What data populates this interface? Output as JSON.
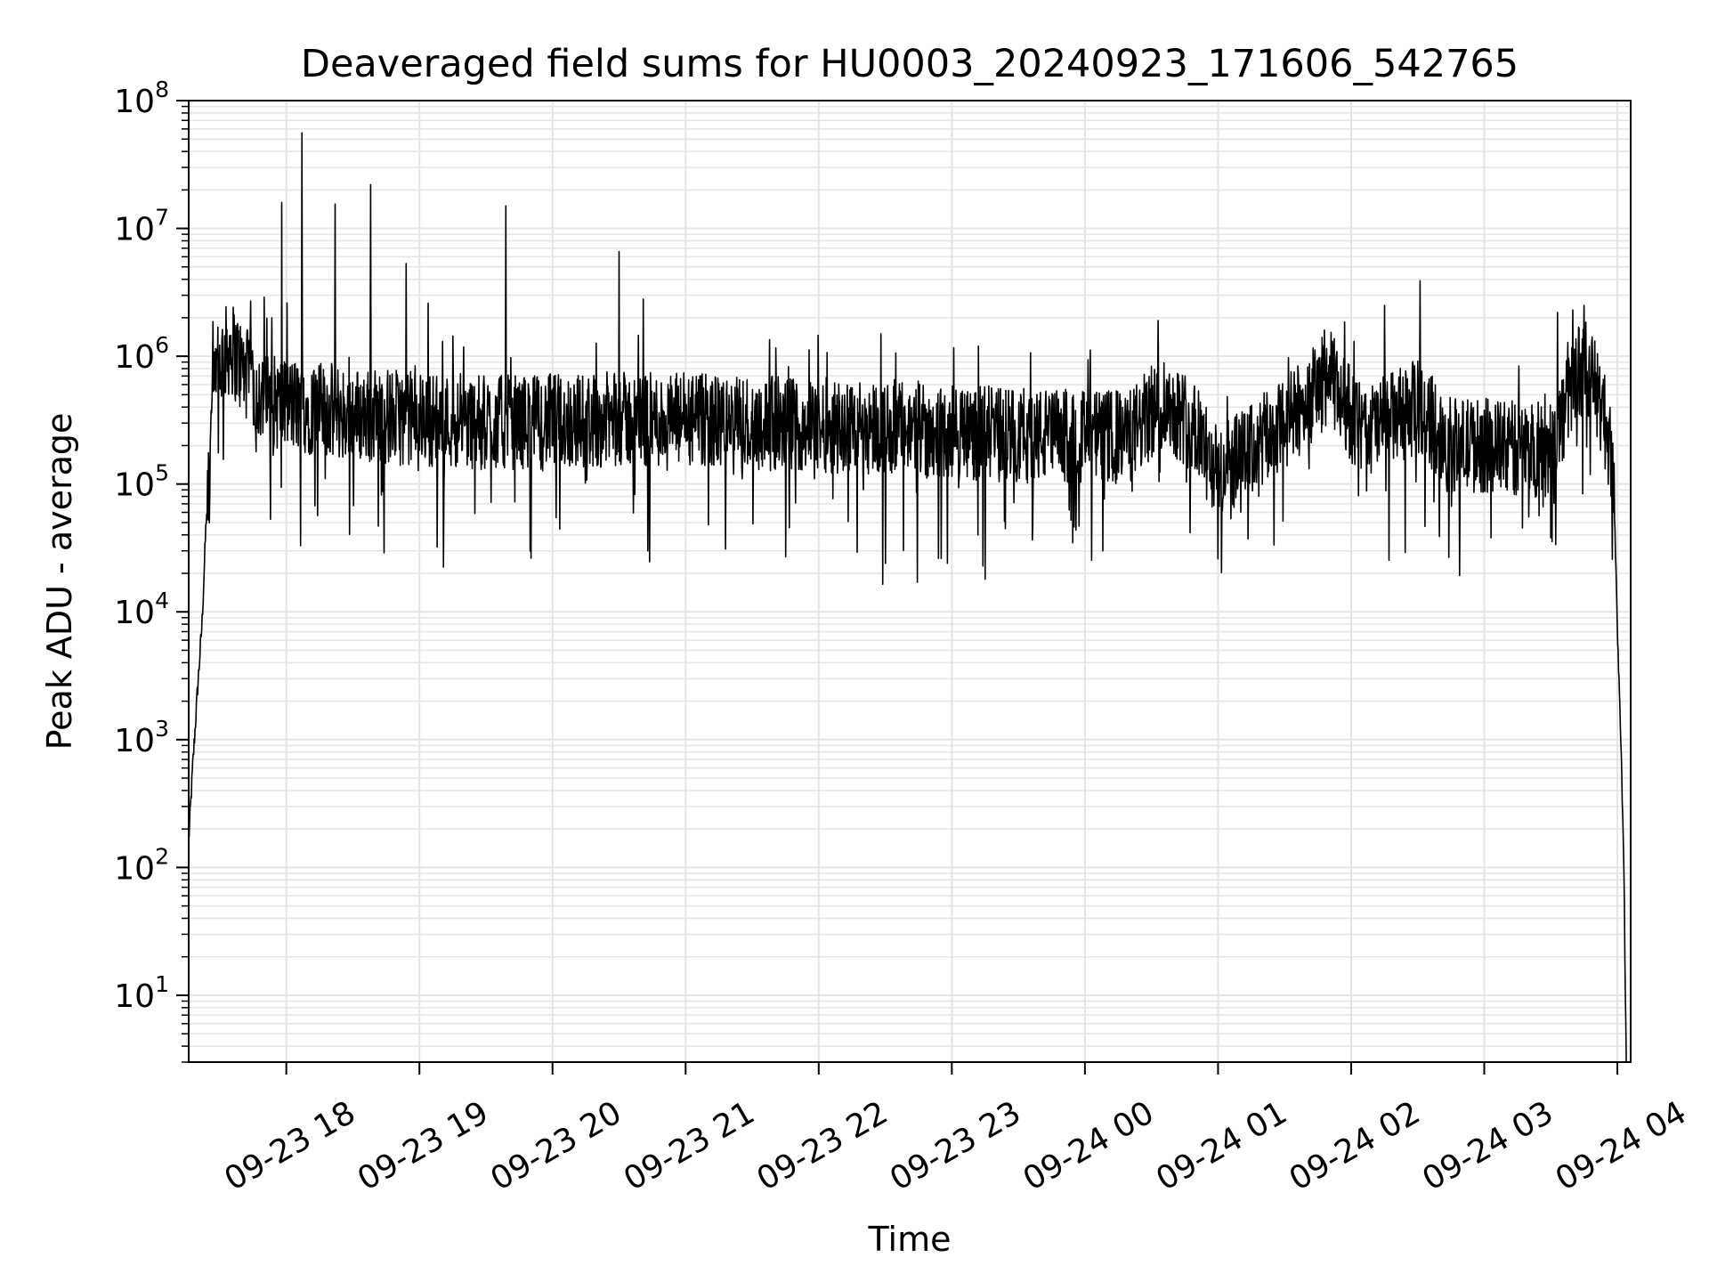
{
  "chart_data": {
    "type": "line",
    "title": "Deaveraged field sums for HU0003_20240923_171606_542765",
    "xlabel": "Time",
    "ylabel": "Peak ADU - average",
    "yscale": "log",
    "ylim": [
      3,
      100000000
    ],
    "xlim": [
      "2024-09-23 17:16",
      "2024-09-24 04:06"
    ],
    "grid": {
      "major": true,
      "minor_y": true
    },
    "line_color": "#000000",
    "grid_color": "#e5e5e5",
    "x_ticks": [
      {
        "t": "2024-09-23 18:00",
        "label": "09-23 18"
      },
      {
        "t": "2024-09-23 19:00",
        "label": "09-23 19"
      },
      {
        "t": "2024-09-23 20:00",
        "label": "09-23 20"
      },
      {
        "t": "2024-09-23 21:00",
        "label": "09-23 21"
      },
      {
        "t": "2024-09-23 22:00",
        "label": "09-23 22"
      },
      {
        "t": "2024-09-23 23:00",
        "label": "09-23 23"
      },
      {
        "t": "2024-09-24 00:00",
        "label": "09-24 00"
      },
      {
        "t": "2024-09-24 01:00",
        "label": "09-24 01"
      },
      {
        "t": "2024-09-24 02:00",
        "label": "09-24 02"
      },
      {
        "t": "2024-09-24 03:00",
        "label": "09-24 03"
      },
      {
        "t": "2024-09-24 04:00",
        "label": "09-24 04"
      }
    ],
    "y_ticks": [
      {
        "value": 10,
        "base": "10",
        "exp": "1"
      },
      {
        "value": 100,
        "base": "10",
        "exp": "2"
      },
      {
        "value": 1000,
        "base": "10",
        "exp": "3"
      },
      {
        "value": 10000,
        "base": "10",
        "exp": "4"
      },
      {
        "value": 100000,
        "base": "10",
        "exp": "5"
      },
      {
        "value": 1000000,
        "base": "10",
        "exp": "6"
      },
      {
        "value": 10000000,
        "base": "10",
        "exp": "7"
      },
      {
        "value": 100000000,
        "base": "10",
        "exp": "8"
      }
    ],
    "envelope": [
      [
        "2024-09-23 17:16",
        160
      ],
      [
        "2024-09-23 17:18",
        700
      ],
      [
        "2024-09-23 17:20",
        2500
      ],
      [
        "2024-09-23 17:22",
        8000
      ],
      [
        "2024-09-23 17:24",
        60000
      ],
      [
        "2024-09-23 17:26",
        300000
      ],
      [
        "2024-09-23 17:30",
        900000
      ],
      [
        "2024-09-23 17:35",
        1200000
      ],
      [
        "2024-09-23 17:40",
        800000
      ],
      [
        "2024-09-23 17:50",
        450000
      ],
      [
        "2024-09-23 18:30",
        350000
      ],
      [
        "2024-09-23 19:30",
        300000
      ],
      [
        "2024-09-23 20:30",
        320000
      ],
      [
        "2024-09-23 21:30",
        300000
      ],
      [
        "2024-09-23 22:30",
        280000
      ],
      [
        "2024-09-23 23:30",
        240000
      ],
      [
        "2024-09-24 00:20",
        230000
      ],
      [
        "2024-09-24 00:35",
        450000
      ],
      [
        "2024-09-24 00:48",
        300000
      ],
      [
        "2024-09-24 01:00",
        120000
      ],
      [
        "2024-09-24 01:15",
        180000
      ],
      [
        "2024-09-24 01:35",
        350000
      ],
      [
        "2024-09-24 01:50",
        700000
      ],
      [
        "2024-09-24 02:05",
        250000
      ],
      [
        "2024-09-24 02:30",
        400000
      ],
      [
        "2024-09-24 02:45",
        200000
      ],
      [
        "2024-09-24 03:00",
        200000
      ],
      [
        "2024-09-24 03:30",
        180000
      ],
      [
        "2024-09-24 03:37",
        400000
      ],
      [
        "2024-09-24 03:42",
        800000
      ],
      [
        "2024-09-24 03:47",
        800000
      ],
      [
        "2024-09-24 03:53",
        400000
      ],
      [
        "2024-09-24 03:58",
        150000
      ],
      [
        "2024-09-24 04:00",
        8000
      ],
      [
        "2024-09-24 04:02",
        500
      ],
      [
        "2024-09-24 04:03",
        80
      ],
      [
        "2024-09-24 04:04",
        3
      ]
    ],
    "spikes": [
      [
        "2024-09-23 17:38",
        1800000
      ],
      [
        "2024-09-23 17:44",
        2700000
      ],
      [
        "2024-09-23 17:50",
        2900000
      ],
      [
        "2024-09-23 17:58",
        16000000
      ],
      [
        "2024-09-23 18:07",
        56000000
      ],
      [
        "2024-09-23 18:22",
        15500000
      ],
      [
        "2024-09-23 18:38",
        22000000
      ],
      [
        "2024-09-23 18:54",
        5300000
      ],
      [
        "2024-09-23 19:04",
        2600000
      ],
      [
        "2024-09-23 19:39",
        15000000
      ],
      [
        "2024-09-23 20:30",
        6600000
      ],
      [
        "2024-09-23 20:41",
        2800000
      ],
      [
        "2024-09-23 23:12",
        1200000
      ],
      [
        "2024-09-24 00:33",
        1900000
      ],
      [
        "2024-09-24 01:48",
        1600000
      ],
      [
        "2024-09-24 02:15",
        2500000
      ],
      [
        "2024-09-24 02:31",
        3900000
      ],
      [
        "2024-09-24 03:33",
        2200000
      ],
      [
        "2024-09-24 03:40",
        2300000
      ]
    ],
    "dips": [
      [
        "2024-09-23 18:44",
        29000
      ],
      [
        "2024-09-23 19:50",
        30000
      ],
      [
        "2024-09-23 20:43",
        30000
      ],
      [
        "2024-09-23 21:18",
        31000
      ],
      [
        "2024-09-23 22:30",
        24000
      ],
      [
        "2024-09-23 22:58",
        24000
      ],
      [
        "2024-09-23 23:15",
        18000
      ],
      [
        "2024-09-24 00:08",
        30000
      ],
      [
        "2024-09-24 01:00",
        26000
      ],
      [
        "2024-09-24 03:03",
        38000
      ],
      [
        "2024-09-24 03:30",
        38000
      ]
    ]
  }
}
